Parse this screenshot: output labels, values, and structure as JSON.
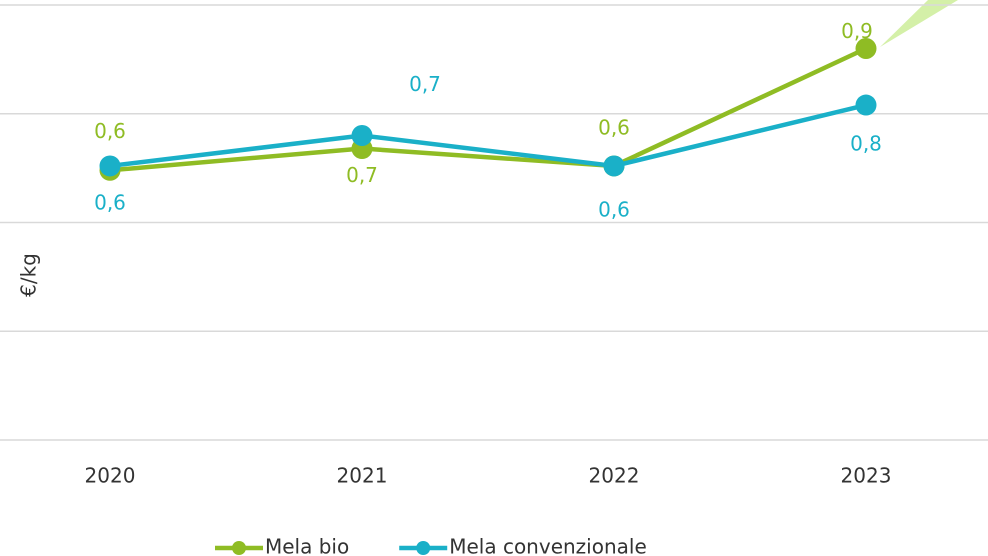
{
  "chart_data": {
    "type": "line",
    "y_label": "€/kg",
    "categories": [
      "2020",
      "2021",
      "2022",
      "2023"
    ],
    "series": [
      {
        "name": "Mela bio",
        "color": "#8fbc24",
        "values": [
          0.62,
          0.67,
          0.63,
          0.9
        ],
        "value_labels": [
          "0,6",
          "0,7",
          "0,6",
          "0,9"
        ]
      },
      {
        "name": "Mela convenzionale",
        "color": "#1ab0c8",
        "values": [
          0.63,
          0.7,
          0.63,
          0.77
        ],
        "value_labels": [
          "0,6",
          "0,7",
          "0,6",
          "0,8"
        ]
      }
    ],
    "ylim": [
      0,
      1
    ],
    "yticks": [
      0,
      0.25,
      0.5,
      0.75,
      1
    ],
    "grid": true,
    "legend": "bottom"
  }
}
